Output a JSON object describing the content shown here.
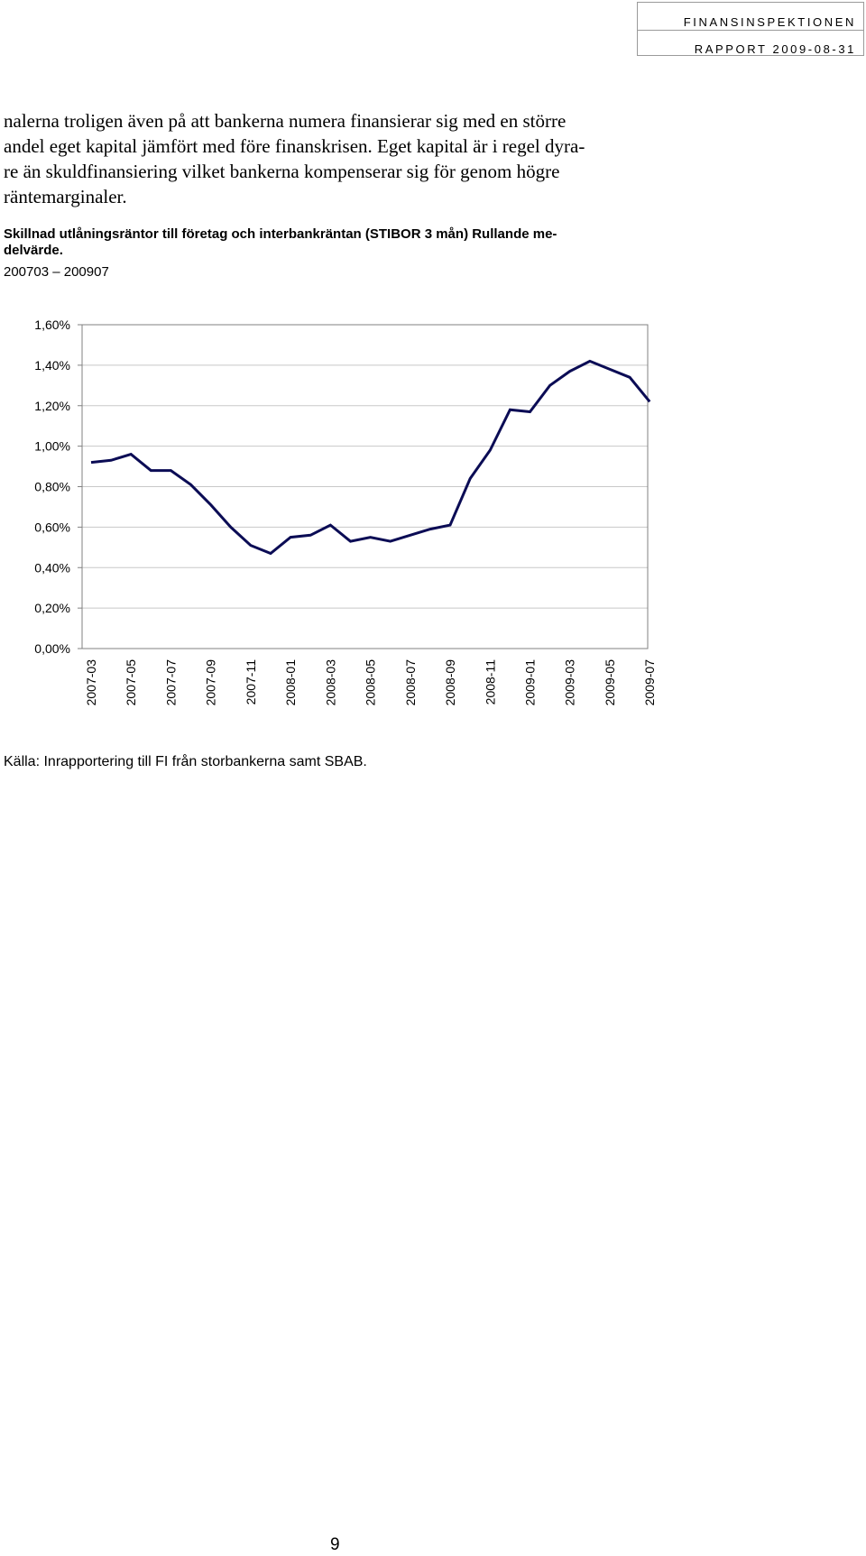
{
  "header": {
    "organization": "FINANSINSPEKTIONEN",
    "report": "RAPPORT 2009-08-31"
  },
  "body_text": {
    "lines": [
      "nalerna troligen även på att bankerna numera finansierar sig med en större",
      "andel eget kapital jämfört med före finanskrisen. Eget kapital är i regel dyra-",
      "re än skuldfinansiering vilket bankerna kompenserar sig för genom högre",
      "räntemarginaler."
    ]
  },
  "figure": {
    "title_lines": [
      "Skillnad utlåningsräntor till företag och interbankräntan (STIBOR 3 mån) Rullande me-",
      "delvärde."
    ],
    "period": "200703 – 200907",
    "source": "Källa: Inrapportering till FI från storbankerna samt SBAB."
  },
  "chart_data": {
    "type": "line",
    "title": "",
    "xlabel": "",
    "ylabel": "",
    "ylim": [
      0,
      1.6
    ],
    "y_ticks": [
      "0,00%",
      "0,20%",
      "0,40%",
      "0,60%",
      "0,80%",
      "1,00%",
      "1,20%",
      "1,40%",
      "1,60%"
    ],
    "x_tick_labels": [
      "2007-03",
      "2007-05",
      "2007-07",
      "2007-09",
      "2007-11",
      "2008-01",
      "2008-03",
      "2008-05",
      "2008-07",
      "2008-09",
      "2008-11",
      "2009-01",
      "2009-03",
      "2009-05",
      "2009-07"
    ],
    "grid": "horizontal",
    "line_color": "#0b0c55",
    "series": [
      {
        "x": [
          "2007-03",
          "2007-04",
          "2007-05",
          "2007-06",
          "2007-07",
          "2007-08",
          "2007-09",
          "2007-10",
          "2007-11",
          "2007-12",
          "2008-01",
          "2008-02",
          "2008-03",
          "2008-04",
          "2008-05",
          "2008-06",
          "2008-07",
          "2008-08",
          "2008-09",
          "2008-10",
          "2008-11",
          "2008-12",
          "2009-01",
          "2009-02",
          "2009-03",
          "2009-04",
          "2009-05",
          "2009-06",
          "2009-07"
        ],
        "values": [
          0.92,
          0.93,
          0.96,
          0.88,
          0.88,
          0.81,
          0.71,
          0.6,
          0.51,
          0.47,
          0.55,
          0.56,
          0.61,
          0.53,
          0.55,
          0.53,
          0.56,
          0.59,
          0.61,
          0.84,
          0.98,
          1.18,
          1.17,
          1.3,
          1.37,
          1.42,
          1.38,
          1.34,
          1.22
        ]
      }
    ]
  },
  "page": {
    "number": "9"
  }
}
